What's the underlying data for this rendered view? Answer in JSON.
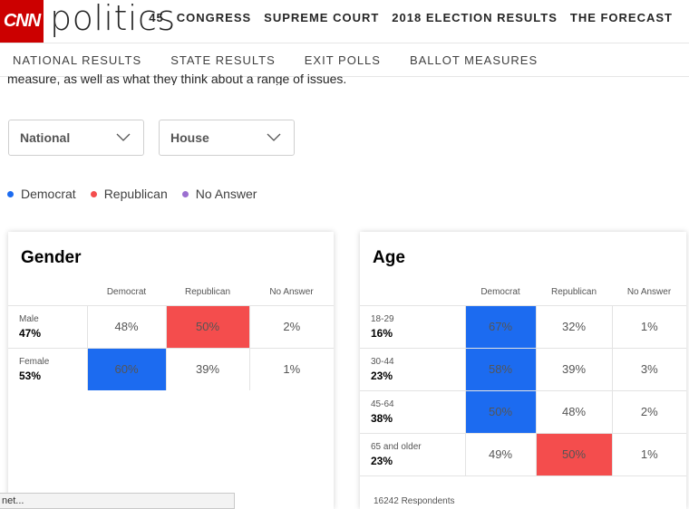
{
  "brand": {
    "logo": "CNN",
    "section": "politics"
  },
  "topnav": [
    "45",
    "CONGRESS",
    "SUPREME COURT",
    "2018 ELECTION RESULTS",
    "THE FORECAST"
  ],
  "subnav": [
    "NATIONAL RESULTS",
    "STATE RESULTS",
    "EXIT POLLS",
    "BALLOT MEASURES"
  ],
  "intro_text": "measure, as well as what they think about a range of issues.",
  "filters": {
    "region": "National",
    "race": "House"
  },
  "legend": [
    {
      "label": "Democrat",
      "color": "#1c6bf0"
    },
    {
      "label": "Republican",
      "color": "#f44d4d"
    },
    {
      "label": "No Answer",
      "color": "#9b6fd0"
    }
  ],
  "columns": [
    "Democrat",
    "Republican",
    "No Answer"
  ],
  "gender": {
    "title": "Gender",
    "rows": [
      {
        "name": "Male",
        "share": "47%",
        "dem": "48%",
        "rep": "50%",
        "na": "2%",
        "winner": "rep"
      },
      {
        "name": "Female",
        "share": "53%",
        "dem": "60%",
        "rep": "39%",
        "na": "1%",
        "winner": "dem"
      }
    ]
  },
  "age": {
    "title": "Age",
    "rows": [
      {
        "name": "18-29",
        "share": "16%",
        "dem": "67%",
        "rep": "32%",
        "na": "1%",
        "winner": "dem"
      },
      {
        "name": "30-44",
        "share": "23%",
        "dem": "58%",
        "rep": "39%",
        "na": "3%",
        "winner": "dem"
      },
      {
        "name": "45-64",
        "share": "38%",
        "dem": "50%",
        "rep": "48%",
        "na": "2%",
        "winner": "dem"
      },
      {
        "name": "65 and older",
        "share": "23%",
        "dem": "49%",
        "rep": "50%",
        "na": "1%",
        "winner": "rep"
      }
    ],
    "respondents": "16242 Respondents"
  },
  "status_tip": "net..."
}
